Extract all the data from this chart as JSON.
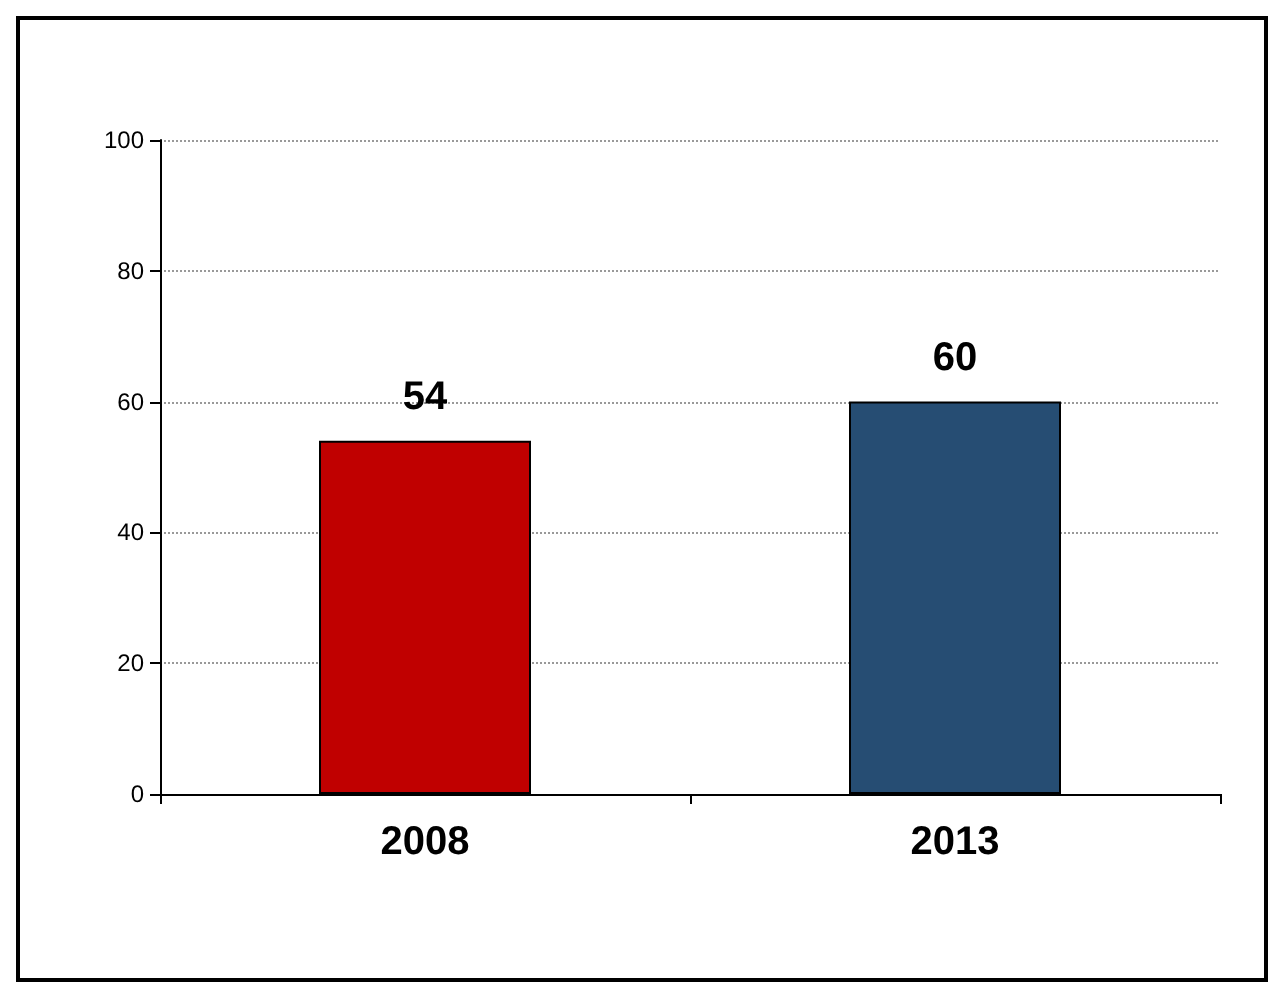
{
  "chart_data": {
    "type": "bar",
    "categories": [
      "2008",
      "2013"
    ],
    "colors": [
      "#c00000",
      "#264d73"
    ],
    "values": [
      54,
      60
    ],
    "ylim": [
      0,
      100
    ],
    "yticks": [
      0,
      20,
      40,
      60,
      80,
      100
    ],
    "grid": "y",
    "data_labels": true
  }
}
